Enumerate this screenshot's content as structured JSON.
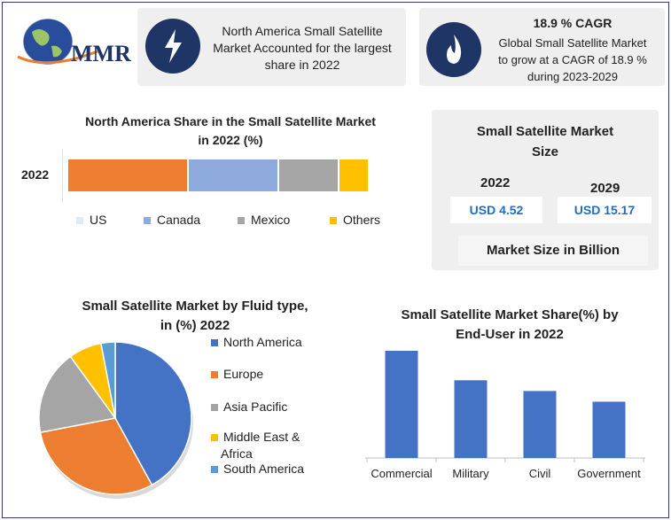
{
  "logo": {
    "text": "MMR"
  },
  "info_card_1": {
    "text_lines": [
      "North America Small Satellite",
      "Market Accounted for the largest",
      "share in 2022"
    ]
  },
  "info_card_2": {
    "title": "18.9 % CAGR",
    "text_lines": [
      "Global Small Satellite Market",
      "to grow at a CAGR of 18.9 %",
      "during 2023-2029"
    ]
  },
  "market_size": {
    "title_lines": [
      "Small Satellite Market",
      "Size"
    ],
    "year_2022": "2022",
    "year_2029": "2029",
    "value_2022": "USD 4.52",
    "value_2029": "USD 15.17",
    "footer": "Market Size in Billion"
  },
  "colors": {
    "orange": "#ed7d31",
    "light_blue": "#8faadc",
    "gray": "#a5a5a5",
    "yellow": "#ffc000",
    "blue": "#4472c4",
    "sky": "#5b9bd5",
    "navy": "#1f3566"
  },
  "chart_data": [
    {
      "type": "bar",
      "orientation": "horizontal-stacked",
      "title_lines": [
        "North America Share in the Small Satellite Market",
        "in 2022 (%)"
      ],
      "categories": [
        "2022"
      ],
      "series": [
        {
          "name": "US",
          "values": [
            40
          ]
        },
        {
          "name": "Canada",
          "values": [
            30
          ]
        },
        {
          "name": "Mexico",
          "values": [
            20
          ]
        },
        {
          "name": "Others",
          "values": [
            10
          ]
        }
      ],
      "legend_position": "bottom"
    },
    {
      "type": "pie",
      "title_lines": [
        "Small Satellite Market by Fluid type,",
        "in (%) 2022"
      ],
      "labels": [
        "North America",
        "Europe",
        "Asia Pacific",
        "Middle East & Africa",
        "South America"
      ],
      "values": [
        42,
        30,
        18,
        7,
        3
      ],
      "legend_position": "right"
    },
    {
      "type": "bar",
      "title_lines": [
        "Small Satellite Market Share(%) by",
        "End-User in 2022"
      ],
      "categories": [
        "Commercial",
        "Military",
        "Civil",
        "Government"
      ],
      "values": [
        40,
        29,
        25,
        21
      ],
      "grid": false
    }
  ]
}
